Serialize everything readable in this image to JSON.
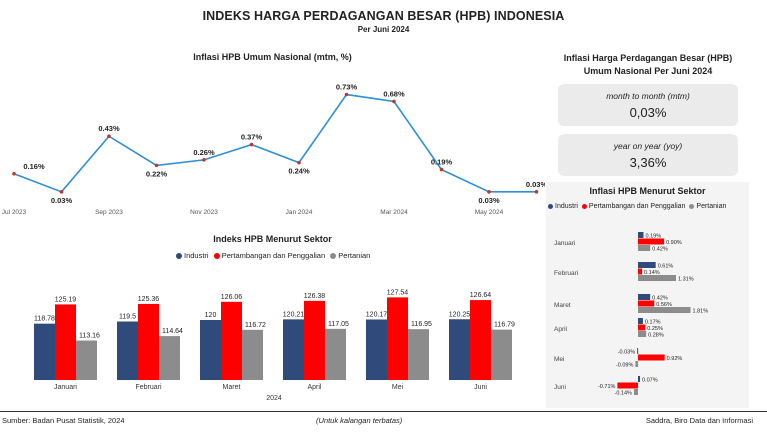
{
  "header": {
    "title": "INDEKS HARGA PERDAGANGAN BESAR (HPB) INDONESIA",
    "subtitle": "Per Juni 2024"
  },
  "summary": {
    "title_line1": "Inflasi Harga Perdagangan Besar (HPB)",
    "title_line2": "Umum Nasional Per Juni 2024",
    "mtm_label": "month to month (mtm)",
    "mtm_value": "0,03%",
    "yoy_label": "year on year (yoy)",
    "yoy_value": "3,36%"
  },
  "footer": {
    "source": "Sumber: Badan Pusat Statistik, 2024",
    "note": "(Untuk kalangan terbatas)",
    "credit": "Saddra, Biro Data dan Informasi"
  },
  "colors": {
    "industri": "#2f4b7c",
    "pertambangan": "#ff0000",
    "pertanian": "#8c8c8c",
    "line": "#2e8fd6",
    "marker": "#c0392b"
  },
  "chart_data": [
    {
      "type": "line",
      "title": "Inflasi HPB Umum Nasional (mtm, %)",
      "x_ticks": [
        "Jul 2023",
        "Sep 2023",
        "Nov 2023",
        "Jan 2024",
        "Mar 2024",
        "May 2024"
      ],
      "x": [
        "2023-07",
        "2023-08",
        "2023-09",
        "2023-10",
        "2023-11",
        "2023-12",
        "2024-01",
        "2024-02",
        "2024-03",
        "2024-04",
        "2024-05",
        "2024-06"
      ],
      "values": [
        0.16,
        0.03,
        0.43,
        0.22,
        0.26,
        0.37,
        0.24,
        0.73,
        0.68,
        0.19,
        0.03,
        0.03
      ],
      "data_labels": [
        "0.16%",
        "0.03%",
        "0.43%",
        "0.22%",
        "0.26%",
        "0.37%",
        "0.24%",
        "0.73%",
        "0.68%",
        "0.19%",
        "0.03%",
        "0.03%"
      ],
      "ylim": [
        0,
        0.8
      ]
    },
    {
      "type": "bar",
      "title": "Indeks HPB Menurut Sektor",
      "xlabel": "2024",
      "categories": [
        "Januari",
        "Februari",
        "Maret",
        "April",
        "Mei",
        "Juni"
      ],
      "legend_position": "top",
      "series": [
        {
          "name": "Industri",
          "values": [
            118.78,
            119.5,
            120,
            120.21,
            120.17,
            120.25
          ],
          "labels": [
            "118.78",
            "119.5",
            "120",
            "120.21",
            "120.17",
            "120.25"
          ]
        },
        {
          "name": "Pertambangan dan Penggalian",
          "values": [
            125.19,
            125.36,
            126.06,
            126.38,
            127.54,
            126.64
          ],
          "labels": [
            "125.19",
            "125.36",
            "126.06",
            "126.38",
            "127.54",
            "126.64"
          ]
        },
        {
          "name": "Pertanian",
          "values": [
            113.16,
            114.64,
            116.72,
            117.05,
            116.95,
            116.79
          ],
          "labels": [
            "113.16",
            "114.64",
            "116.72",
            "117.05",
            "116.95",
            "116.79"
          ]
        }
      ]
    },
    {
      "type": "bar",
      "orientation": "horizontal",
      "title": "Inflasi HPB Menurut Sektor",
      "categories": [
        "Januari",
        "Februari",
        "Maret",
        "April",
        "Mei",
        "Juni"
      ],
      "legend_position": "top",
      "series": [
        {
          "name": "Industri",
          "values": [
            0.19,
            0.61,
            0.42,
            0.17,
            -0.03,
            0.07
          ],
          "labels": [
            "0.19%",
            "0.61%",
            "0.42%",
            "0.17%",
            "-0.03%",
            "0.07%"
          ]
        },
        {
          "name": "Pertambangan dan Penggalian",
          "values": [
            0.9,
            0.14,
            0.56,
            0.25,
            0.92,
            -0.71
          ],
          "labels": [
            "0.90%",
            "0.14%",
            "0.56%",
            "0.25%",
            "0.92%",
            "-0.71%"
          ]
        },
        {
          "name": "Pertanian",
          "values": [
            0.42,
            1.31,
            1.81,
            0.28,
            -0.09,
            -0.14
          ],
          "labels": [
            "0.42%",
            "1.31%",
            "1.81%",
            "0.28%",
            "-0.09%",
            "-0.14%"
          ]
        }
      ]
    }
  ]
}
